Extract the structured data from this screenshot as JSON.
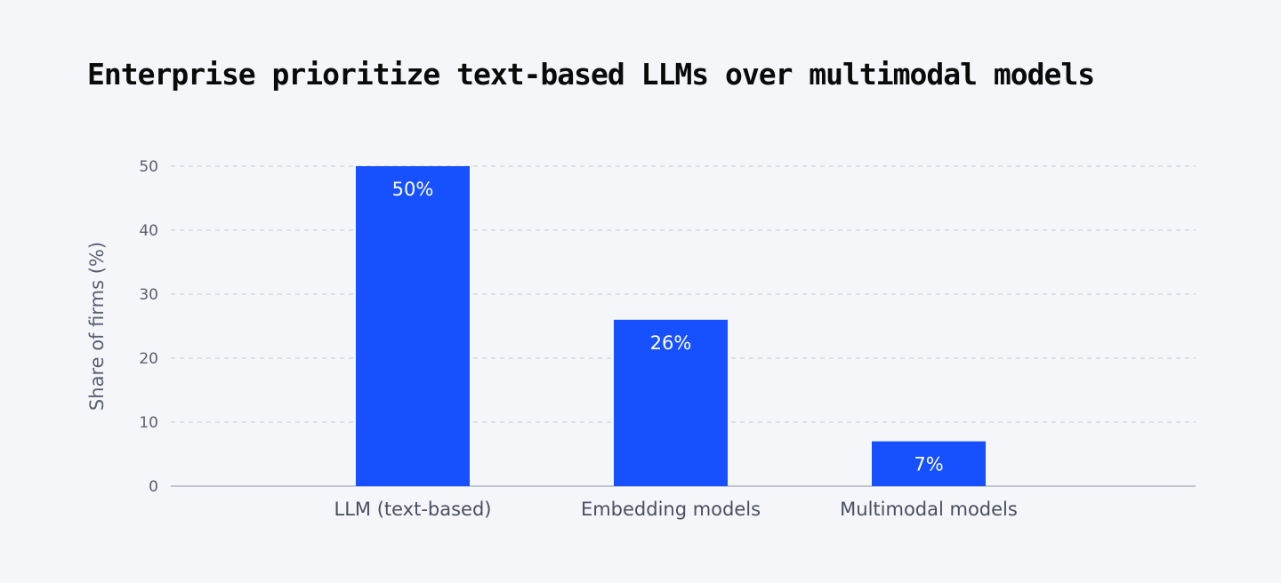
{
  "chart_data": {
    "type": "bar",
    "title": "Enterprise prioritize text-based LLMs over multimodal models",
    "xlabel": "",
    "ylabel": "Share  of firms (%)",
    "categories": [
      "LLM (text-based)",
      "Embedding models",
      "Multimodal models"
    ],
    "values": [
      50,
      26,
      7
    ],
    "data_labels": [
      "50%",
      "26%",
      "7%"
    ],
    "yticks": [
      0,
      10,
      20,
      30,
      40,
      50
    ],
    "ylim": [
      0,
      50
    ],
    "grid": true,
    "bar_color": "#1650ff"
  }
}
